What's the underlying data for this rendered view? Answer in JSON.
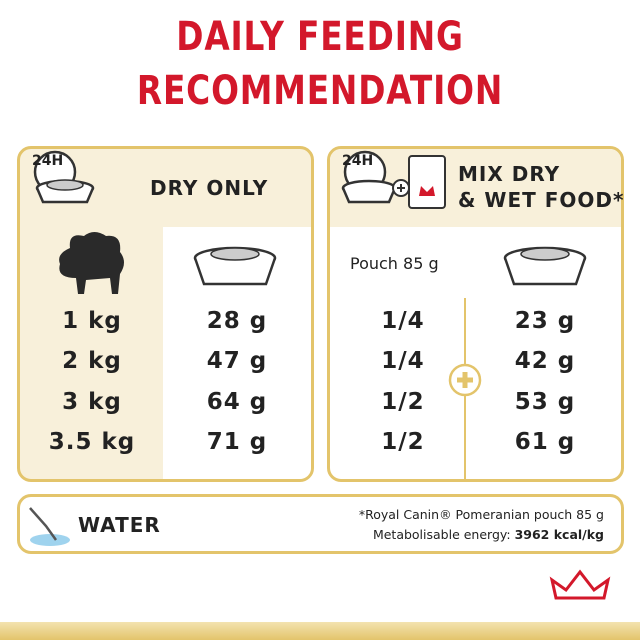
{
  "header": {
    "title_lines": [
      "DAILY FEEDING",
      "RECOMMENDATION"
    ]
  },
  "dry_panel": {
    "badge": "24H",
    "label": "DRY ONLY",
    "rows": [
      [
        "1 kg",
        "28 g"
      ],
      [
        "2 kg",
        "47 g"
      ],
      [
        "3 kg",
        "64 g"
      ],
      [
        "3.5 kg",
        "71 g"
      ]
    ]
  },
  "mix_panel": {
    "badge": "24H",
    "label_lines": [
      "MIX DRY",
      "& WET FOOD*"
    ],
    "pouch_header": "Pouch 85 g",
    "rows": [
      [
        "1/4",
        "23 g"
      ],
      [
        "1/4",
        "42 g"
      ],
      [
        "1/2",
        "53 g"
      ],
      [
        "1/2",
        "61 g"
      ]
    ]
  },
  "water": {
    "label": "WATER"
  },
  "footnote": {
    "line1": "*Royal Canin® Pomeranian pouch 85 g",
    "line2_prefix": "Metabolisable energy: ",
    "line2_bold": "3962 kcal/kg"
  }
}
